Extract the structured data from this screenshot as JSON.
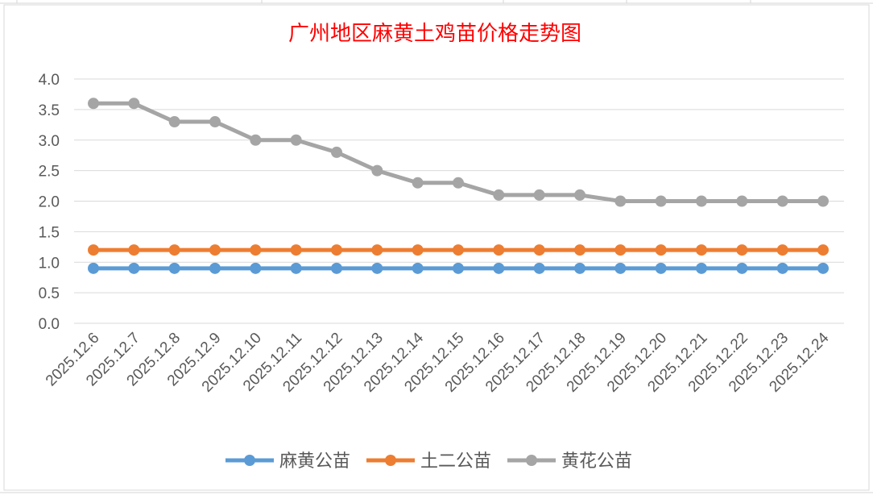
{
  "chart_data": {
    "type": "line",
    "title": "广州地区麻黄土鸡苗价格走势图",
    "xlabel": "",
    "ylabel": "",
    "ylim": [
      0,
      4
    ],
    "yticks": [
      "0.0",
      "0.5",
      "1.0",
      "1.5",
      "2.0",
      "2.5",
      "3.0",
      "3.5",
      "4.0"
    ],
    "grid": true,
    "legend_position": "bottom",
    "categories": [
      "2025.12.6",
      "2025.12.7",
      "2025.12.8",
      "2025.12.9",
      "2025.12.10",
      "2025.12.11",
      "2025.12.12",
      "2025.12.13",
      "2025.12.14",
      "2025.12.15",
      "2025.12.16",
      "2025.12.17",
      "2025.12.18",
      "2025.12.19",
      "2025.12.20",
      "2025.12.21",
      "2025.12.22",
      "2025.12.23",
      "2025.12.24"
    ],
    "series": [
      {
        "name": "麻黄公苗",
        "color": "#5b9bd5",
        "values": [
          0.9,
          0.9,
          0.9,
          0.9,
          0.9,
          0.9,
          0.9,
          0.9,
          0.9,
          0.9,
          0.9,
          0.9,
          0.9,
          0.9,
          0.9,
          0.9,
          0.9,
          0.9,
          0.9
        ]
      },
      {
        "name": "土二公苗",
        "color": "#ed7d31",
        "values": [
          1.2,
          1.2,
          1.2,
          1.2,
          1.2,
          1.2,
          1.2,
          1.2,
          1.2,
          1.2,
          1.2,
          1.2,
          1.2,
          1.2,
          1.2,
          1.2,
          1.2,
          1.2,
          1.2
        ]
      },
      {
        "name": "黄花公苗",
        "color": "#a5a5a5",
        "values": [
          3.6,
          3.6,
          3.3,
          3.3,
          3.0,
          3.0,
          2.8,
          2.5,
          2.3,
          2.3,
          2.1,
          2.1,
          2.1,
          2.0,
          2.0,
          2.0,
          2.0,
          2.0,
          2.0
        ]
      }
    ]
  }
}
